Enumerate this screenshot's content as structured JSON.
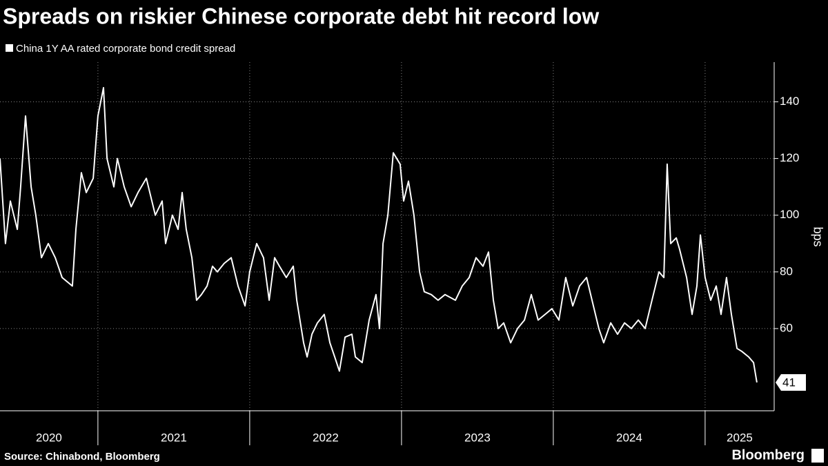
{
  "chart_data": {
    "type": "line",
    "title": "Spreads on riskier Chinese corporate debt hit record low",
    "y_axis_label": "bps",
    "source": "Source: Chinabond, Bloomberg",
    "brand": "Bloomberg",
    "x": [
      2020.355,
      2020.391,
      2020.423,
      2020.446,
      2020.469,
      2020.491,
      2020.523,
      2020.56,
      2020.591,
      2020.628,
      2020.673,
      2020.719,
      2020.764,
      2020.832,
      2020.855,
      2020.891,
      2020.923,
      2020.969,
      2021.0,
      2021.037,
      2021.06,
      2021.105,
      2021.128,
      2021.173,
      2021.219,
      2021.264,
      2021.319,
      2021.378,
      2021.423,
      2021.446,
      2021.491,
      2021.528,
      2021.555,
      2021.582,
      2021.619,
      2021.65,
      2021.682,
      2021.719,
      2021.755,
      2021.787,
      2021.832,
      2021.878,
      2021.923,
      2021.969,
      2022.0,
      2022.046,
      2022.091,
      2022.128,
      2022.164,
      2022.196,
      2022.241,
      2022.287,
      2022.31,
      2022.355,
      2022.378,
      2022.41,
      2022.446,
      2022.491,
      2022.528,
      2022.56,
      2022.591,
      2022.628,
      2022.673,
      2022.696,
      2022.741,
      2022.787,
      2022.832,
      2022.855,
      2022.878,
      2022.91,
      2022.946,
      2022.991,
      2023.014,
      2023.046,
      2023.082,
      2023.119,
      2023.15,
      2023.196,
      2023.241,
      2023.287,
      2023.355,
      2023.4,
      2023.446,
      2023.491,
      2023.537,
      2023.573,
      2023.605,
      2023.637,
      2023.673,
      2023.719,
      2023.764,
      2023.81,
      2023.855,
      2023.9,
      2023.946,
      2023.991,
      2024.037,
      2024.082,
      2024.128,
      2024.173,
      2024.219,
      2024.264,
      2024.3,
      2024.332,
      2024.378,
      2024.423,
      2024.469,
      2024.514,
      2024.56,
      2024.605,
      2024.65,
      2024.696,
      2024.728,
      2024.75,
      2024.773,
      2024.81,
      2024.832,
      2024.878,
      2024.914,
      2024.946,
      2024.969,
      2025.0,
      2025.037,
      2025.073,
      2025.105,
      2025.141,
      2025.173,
      2025.21,
      2025.241,
      2025.287,
      2025.319,
      2025.341
    ],
    "series": [
      {
        "name": "China 1Y AA rated corporate bond credit spread",
        "color": "#ffffff",
        "values": [
          120,
          90,
          105,
          100,
          95,
          110,
          135,
          110,
          100,
          85,
          90,
          85,
          78,
          75,
          95,
          115,
          108,
          113,
          135,
          145,
          120,
          110,
          120,
          110,
          103,
          108,
          113,
          100,
          105,
          90,
          100,
          95,
          108,
          95,
          85,
          70,
          72,
          75,
          82,
          80,
          83,
          85,
          75,
          68,
          80,
          90,
          85,
          70,
          85,
          82,
          78,
          82,
          70,
          55,
          50,
          58,
          62,
          65,
          55,
          50,
          45,
          57,
          58,
          50,
          48,
          63,
          72,
          60,
          90,
          100,
          122,
          118,
          105,
          112,
          100,
          80,
          73,
          72,
          70,
          72,
          70,
          75,
          78,
          85,
          82,
          87,
          70,
          60,
          62,
          55,
          60,
          63,
          72,
          63,
          65,
          67,
          63,
          78,
          68,
          75,
          78,
          68,
          60,
          55,
          62,
          58,
          62,
          60,
          63,
          60,
          70,
          80,
          78,
          118,
          90,
          92,
          88,
          78,
          65,
          75,
          93,
          78,
          70,
          75,
          65,
          78,
          65,
          53,
          52,
          50,
          48,
          41
        ]
      }
    ],
    "xlim": [
      2020.355,
      2025.455
    ],
    "xticks": [
      2020,
      2021,
      2022,
      2023,
      2024,
      2025
    ],
    "ylim": [
      31,
      154
    ],
    "yticks": [
      60,
      80,
      100,
      120,
      140
    ],
    "grid": true
  }
}
